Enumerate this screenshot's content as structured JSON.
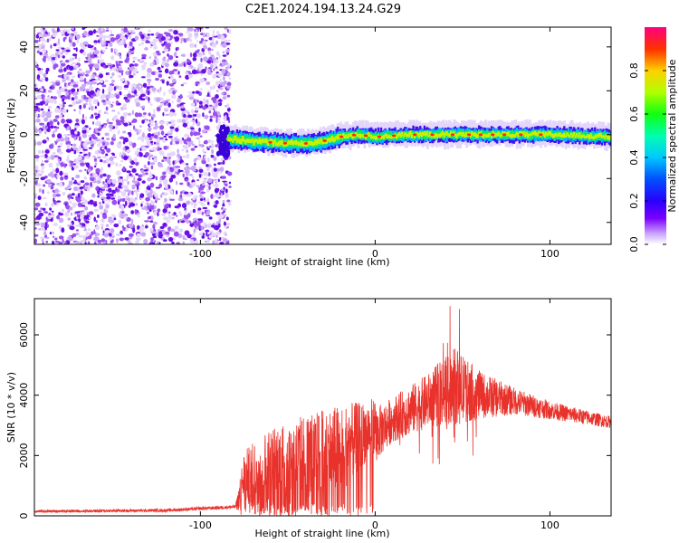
{
  "title": "C2E1.2024.194.13.24.G29",
  "chart_data": [
    {
      "type": "heatmap",
      "xlabel": "Height of straight line (km)",
      "ylabel": "Frequency (Hz)",
      "xlim": [
        -195,
        135
      ],
      "ylim": [
        -50,
        49
      ],
      "x_ticks": [
        -100,
        0,
        100
      ],
      "x_tick_labels": [
        "-100",
        "0",
        "100"
      ],
      "y_ticks": [
        -40,
        -20,
        0,
        20,
        40
      ],
      "y_tick_labels": [
        "-40",
        "-20",
        "0",
        "20",
        "40"
      ],
      "grid": false,
      "colorbar": {
        "label": "Normalized spectral amplitude",
        "range": [
          0,
          1
        ],
        "ticks": [
          0.0,
          0.2,
          0.4,
          0.6,
          0.8
        ],
        "tick_labels": [
          "0.0",
          "0.2",
          "0.4",
          "0.6",
          "0.8"
        ],
        "colormap": "rainbow"
      },
      "noise_region_x": [
        -195,
        -85
      ],
      "signal_center_hz": [
        [
          -85,
          -2
        ],
        [
          -70,
          -3
        ],
        [
          -50,
          -4
        ],
        [
          -35,
          -4
        ],
        [
          -20,
          -1
        ],
        [
          -10,
          0
        ],
        [
          0,
          -1
        ],
        [
          20,
          0
        ],
        [
          40,
          0
        ],
        [
          60,
          0
        ],
        [
          80,
          0
        ],
        [
          100,
          0
        ],
        [
          135,
          -1
        ]
      ]
    },
    {
      "type": "line",
      "xlabel": "Height of straight line (km)",
      "ylabel": "SNR (10 * v/v)",
      "xlim": [
        -195,
        135
      ],
      "ylim": [
        0,
        7200
      ],
      "x_ticks": [
        -100,
        0,
        100
      ],
      "x_tick_labels": [
        "-100",
        "0",
        "100"
      ],
      "y_ticks": [
        0,
        2000,
        4000,
        6000
      ],
      "y_tick_labels": [
        "0",
        "2000",
        "4000",
        "6000"
      ],
      "grid": false,
      "color": "#e8322b",
      "envelope": [
        {
          "x": -195,
          "base": 150,
          "spread": 80
        },
        {
          "x": -120,
          "base": 180,
          "spread": 100
        },
        {
          "x": -80,
          "base": 300,
          "spread": 120
        },
        {
          "x": -75,
          "base": 900,
          "spread": 1800
        },
        {
          "x": -60,
          "base": 1200,
          "spread": 2500
        },
        {
          "x": -40,
          "base": 1400,
          "spread": 2800
        },
        {
          "x": -20,
          "base": 1600,
          "spread": 3000
        },
        {
          "x": -5,
          "base": 2400,
          "spread": 2000
        },
        {
          "x": 10,
          "base": 3200,
          "spread": 1500
        },
        {
          "x": 30,
          "base": 3800,
          "spread": 1800
        },
        {
          "x": 45,
          "base": 4300,
          "spread": 2600
        },
        {
          "x": 60,
          "base": 4000,
          "spread": 1600
        },
        {
          "x": 80,
          "base": 3800,
          "spread": 900
        },
        {
          "x": 100,
          "base": 3500,
          "spread": 600
        },
        {
          "x": 135,
          "base": 3100,
          "spread": 400
        }
      ]
    }
  ]
}
